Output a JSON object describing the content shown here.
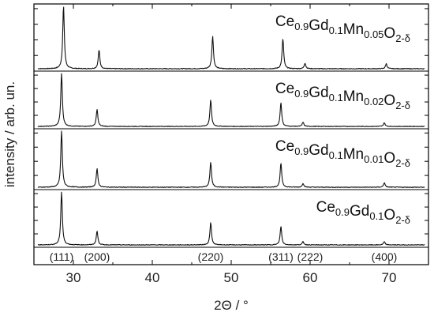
{
  "chart_data": {
    "type": "line",
    "xlabel": "2Θ / °",
    "ylabel": "intensity / arb. un.",
    "xlim": [
      25,
      75
    ],
    "x_ticks": [
      30,
      40,
      50,
      60,
      70
    ],
    "y_tick_labels_shown": false,
    "grid": false,
    "peak_positions": [
      28.5,
      33.0,
      47.4,
      56.3,
      59.1,
      69.4
    ],
    "series": [
      {
        "label": [
          [
            "Ce",
            ""
          ],
          [
            "0.9",
            "sub"
          ],
          [
            "Gd",
            ""
          ],
          [
            "0.1",
            "sub"
          ],
          [
            "Mn",
            ""
          ],
          [
            "0.05",
            "sub"
          ],
          [
            "O",
            ""
          ],
          [
            "2-δ",
            "sub"
          ]
        ],
        "shift": 0.25,
        "peak_heights": [
          1.0,
          0.3,
          0.52,
          0.48,
          0.09,
          0.08
        ]
      },
      {
        "label": [
          [
            "Ce",
            ""
          ],
          [
            "0.9",
            "sub"
          ],
          [
            "Gd",
            ""
          ],
          [
            "0.1",
            "sub"
          ],
          [
            "Mn",
            ""
          ],
          [
            "0.02",
            "sub"
          ],
          [
            "O",
            ""
          ],
          [
            "2-δ",
            "sub"
          ]
        ],
        "shift": 0.0,
        "peak_heights": [
          1.0,
          0.32,
          0.5,
          0.45,
          0.08,
          0.07
        ]
      },
      {
        "label": [
          [
            "Ce",
            ""
          ],
          [
            "0.9",
            "sub"
          ],
          [
            "Gd",
            ""
          ],
          [
            "0.1",
            "sub"
          ],
          [
            "Mn",
            ""
          ],
          [
            "0.01",
            "sub"
          ],
          [
            "O",
            ""
          ],
          [
            "2-δ",
            "sub"
          ]
        ],
        "shift": 0.0,
        "peak_heights": [
          1.0,
          0.33,
          0.45,
          0.43,
          0.07,
          0.08
        ]
      },
      {
        "label": [
          [
            "Ce",
            ""
          ],
          [
            "0.9",
            "sub"
          ],
          [
            "Gd",
            ""
          ],
          [
            "0.1",
            "sub"
          ],
          [
            "O",
            ""
          ],
          [
            "2-δ",
            "sub"
          ]
        ],
        "shift": 0.0,
        "peak_heights": [
          1.0,
          0.26,
          0.42,
          0.35,
          0.06,
          0.06
        ]
      }
    ],
    "annotations": [
      {
        "text": "(111)",
        "x": 28.5
      },
      {
        "text": "(200)",
        "x": 33.0
      },
      {
        "text": "(220)",
        "x": 47.4
      },
      {
        "text": "(311)",
        "x": 56.3
      },
      {
        "text": "(222)",
        "x": 60.0
      },
      {
        "text": "(400)",
        "x": 69.4
      }
    ]
  }
}
